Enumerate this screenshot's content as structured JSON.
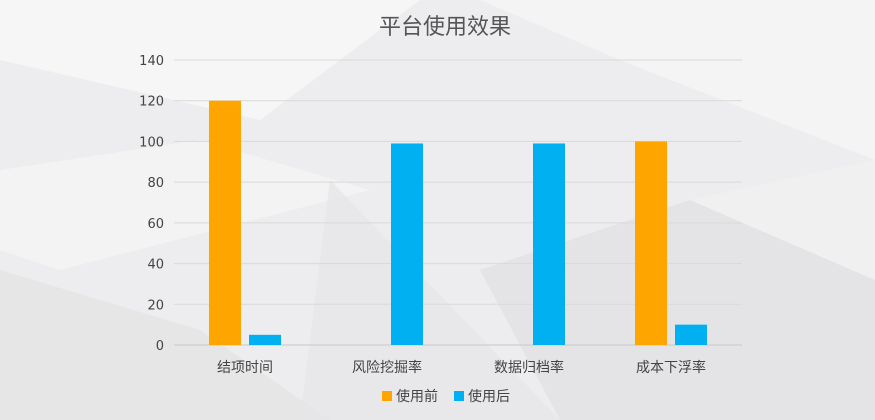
{
  "chart_data": {
    "type": "bar",
    "title": "平台使用效果",
    "categories": [
      "结项时间",
      "风险挖掘率",
      "数据归档率",
      "成本下浮率"
    ],
    "series": [
      {
        "name": "使用前",
        "color": "#FFA500",
        "values": [
          120,
          0,
          0,
          100
        ]
      },
      {
        "name": "使用后",
        "color": "#00B0F0",
        "values": [
          5,
          99,
          99,
          10
        ]
      }
    ],
    "yticks": [
      0,
      20,
      40,
      60,
      80,
      100,
      120,
      140
    ],
    "ylim": [
      0,
      140
    ],
    "grid": true,
    "legend_position": "bottom"
  }
}
